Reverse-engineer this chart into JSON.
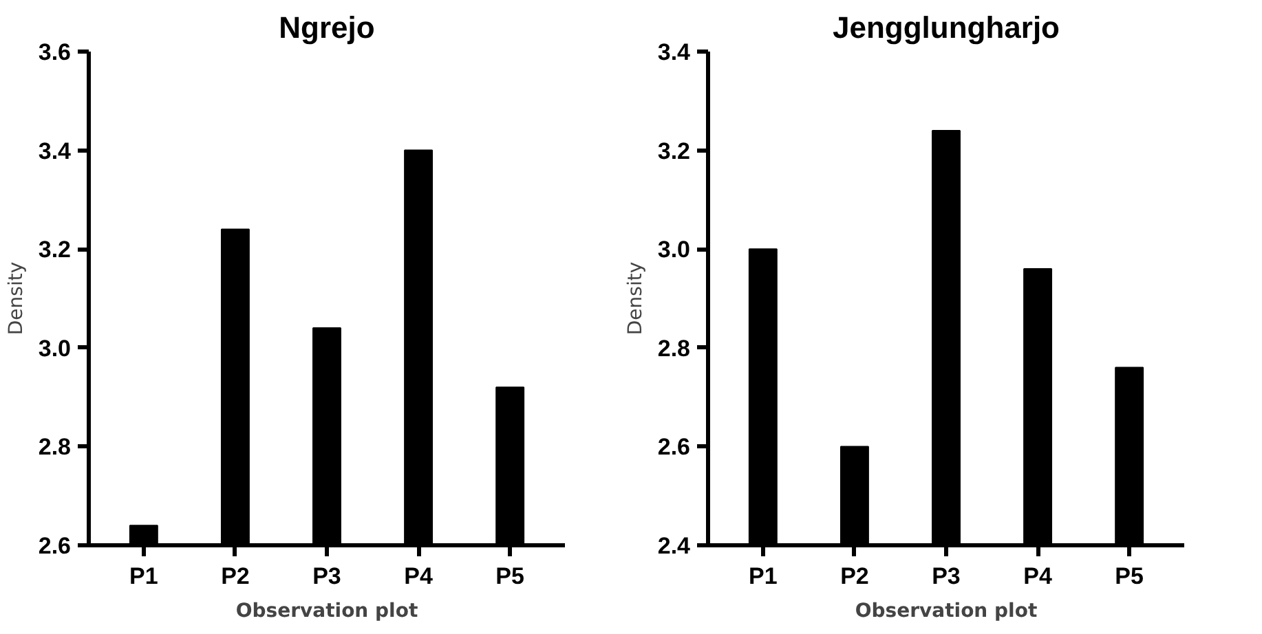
{
  "chart_data": [
    {
      "type": "bar",
      "title": "Ngrejo",
      "xlabel": "Observation plot",
      "ylabel": "Density",
      "categories": [
        "P1",
        "P2",
        "P3",
        "P4",
        "P5"
      ],
      "values": [
        2.64,
        3.24,
        3.04,
        3.4,
        2.92
      ],
      "color": "#000000",
      "ylim": [
        2.6,
        3.6
      ],
      "yticks": [
        {
          "value": 2.6,
          "label": "2.6"
        },
        {
          "value": 2.8,
          "label": "2.8"
        },
        {
          "value": 3.0,
          "label": "3.0"
        },
        {
          "value": 3.2,
          "label": "3.2"
        },
        {
          "value": 3.4,
          "label": "3.4"
        },
        {
          "value": 3.6,
          "label": "3.6"
        }
      ],
      "grid": false
    },
    {
      "type": "bar",
      "title": "Jengglungharjo",
      "xlabel": "Observation plot",
      "ylabel": "Density",
      "categories": [
        "P1",
        "P2",
        "P3",
        "P4",
        "P5"
      ],
      "values": [
        3.0,
        2.6,
        3.24,
        2.96,
        2.76
      ],
      "color": "#000000",
      "ylim": [
        2.4,
        3.4
      ],
      "yticks": [
        {
          "value": 2.4,
          "label": "2.4"
        },
        {
          "value": 2.6,
          "label": "2.6"
        },
        {
          "value": 2.8,
          "label": "2.8"
        },
        {
          "value": 3.0,
          "label": "3.0"
        },
        {
          "value": 3.2,
          "label": "3.2"
        },
        {
          "value": 3.4,
          "label": "3.4"
        }
      ],
      "grid": false
    }
  ]
}
